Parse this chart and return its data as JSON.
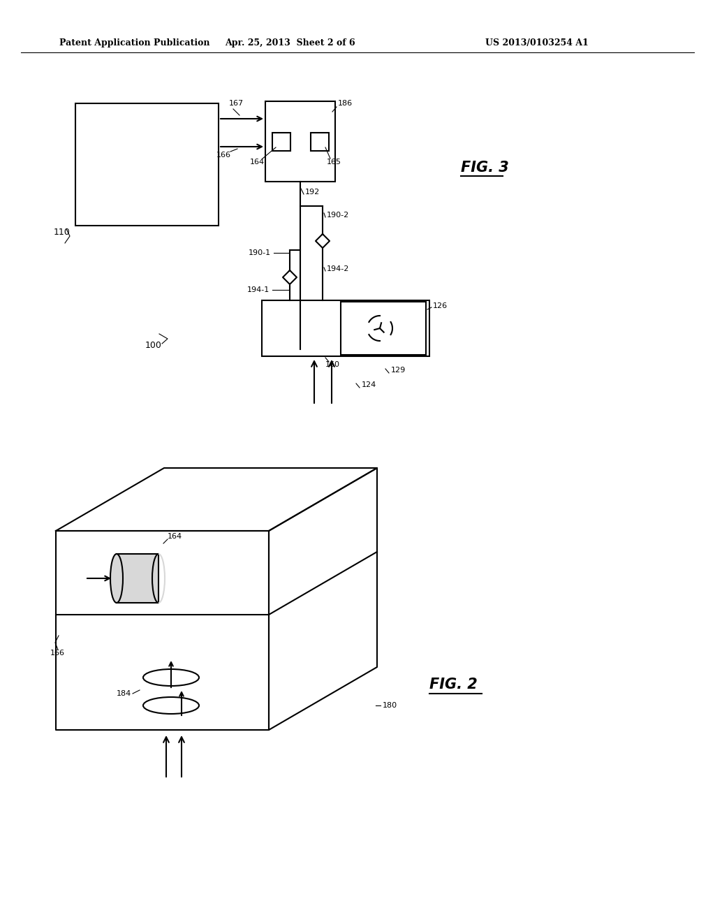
{
  "bg_color": "#ffffff",
  "line_color": "#000000",
  "header_left": "Patent Application Publication",
  "header_center": "Apr. 25, 2013  Sheet 2 of 6",
  "header_right": "US 2013/0103254 A1",
  "fig3_label": "FIG. 3",
  "fig2_label": "FIG. 2",
  "label_100": "100",
  "label_110": "110",
  "label_124": "124",
  "label_126": "126",
  "label_129": "129",
  "label_160": "160",
  "label_164": "164",
  "label_165": "165",
  "label_166": "166",
  "label_167": "167",
  "label_186": "186",
  "label_190_1": "190-1",
  "label_190_2": "190-2",
  "label_192": "192",
  "label_194_1": "194-1",
  "label_194_2": "194-2",
  "label_164b": "164",
  "label_166b": "166",
  "label_180": "180",
  "label_184": "184"
}
